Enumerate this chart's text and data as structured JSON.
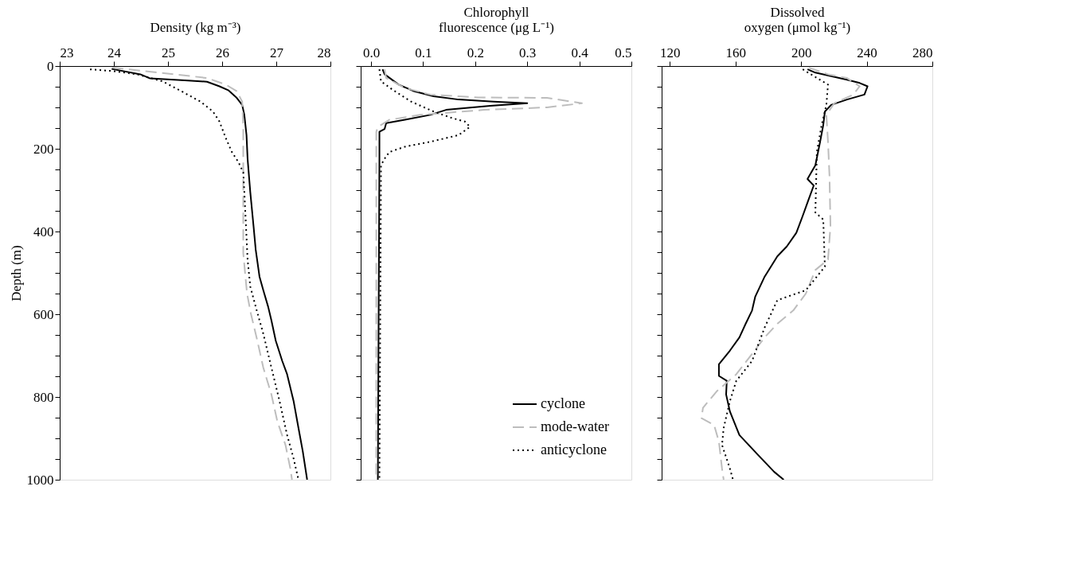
{
  "chart_data": [
    {
      "type": "line",
      "xlabel": "Density (kg m⁻³)",
      "ylabel": "Depth (m)",
      "xlim": [
        23,
        28
      ],
      "xticks": [
        23,
        24,
        25,
        26,
        27,
        28
      ],
      "ylim": [
        1000,
        0
      ],
      "yticks": [
        0,
        {
          "value": 50,
          "label": null
        },
        {
          "value": 100,
          "label": null
        },
        {
          "value": 150,
          "label": null
        },
        200,
        {
          "value": 250,
          "label": null
        },
        {
          "value": 300,
          "label": null
        },
        {
          "value": 350,
          "label": null
        },
        400,
        {
          "value": 450,
          "label": null
        },
        {
          "value": 500,
          "label": null
        },
        {
          "value": 550,
          "label": null
        },
        600,
        {
          "value": 650,
          "label": null
        },
        {
          "value": 700,
          "label": null
        },
        {
          "value": 750,
          "label": null
        },
        800,
        {
          "value": 850,
          "label": null
        },
        {
          "value": 900,
          "label": null
        },
        {
          "value": 950,
          "label": null
        },
        1000
      ],
      "series": [
        {
          "color": "#000000",
          "line_style": "solid",
          "x": [
            23.96,
            24.49,
            24.67,
            24.99,
            25.37,
            25.72,
            25.95,
            26.12,
            26.27,
            26.37,
            26.41,
            26.45,
            26.47,
            26.52,
            26.58,
            26.62,
            26.69,
            26.76,
            26.85,
            26.91,
            26.99,
            27.11,
            27.2,
            27.32,
            27.41,
            27.49,
            27.57
          ],
          "values": [
            7,
            20,
            30,
            32,
            35,
            38,
            49,
            59,
            77,
            94,
            118,
            167,
            224,
            305,
            387,
            444,
            509,
            542,
            582,
            615,
            664,
            713,
            745,
            810,
            875,
            932,
            1000
          ]
        },
        {
          "color": "#bdbdbd",
          "line_style": "dashed",
          "x": [
            23.97,
            24.55,
            25.13,
            25.72,
            26.07,
            26.27,
            26.37,
            26.39,
            26.39,
            26.39,
            26.39,
            26.43,
            26.46,
            26.53,
            26.65,
            26.76,
            26.91,
            27.02,
            27.17,
            27.26,
            27.29
          ],
          "values": [
            4,
            12,
            20,
            29,
            45,
            61,
            86,
            143,
            224,
            305,
            452,
            509,
            550,
            598,
            664,
            729,
            794,
            859,
            916,
            973,
            1000
          ]
        },
        {
          "color": "#000000",
          "line_style": "dotted",
          "x": [
            23.56,
            23.97,
            24.43,
            24.9,
            25.25,
            25.6,
            25.83,
            25.95,
            26.07,
            26.18,
            26.3,
            26.39,
            26.41,
            26.44,
            26.47,
            26.52,
            26.62,
            26.76,
            26.91,
            27.06,
            27.2,
            27.32,
            27.41
          ],
          "values": [
            8,
            12,
            20,
            37,
            61,
            86,
            110,
            134,
            175,
            208,
            232,
            257,
            305,
            387,
            468,
            533,
            582,
            647,
            729,
            810,
            892,
            949,
            1000
          ]
        }
      ]
    },
    {
      "type": "line",
      "xlabel": "Chlorophyll\nfluorescence (μg L⁻¹)",
      "xlim": [
        -0.02,
        0.5
      ],
      "xticks": [
        {
          "value": 0,
          "label": "0.0"
        },
        0.1,
        0.2,
        0.3,
        0.4,
        0.5
      ],
      "ylim": [
        1000,
        0
      ],
      "tick_labels": "x",
      "legend": "bottom right",
      "yticks": [
        0,
        {
          "value": 50,
          "label": null
        },
        {
          "value": 100,
          "label": null
        },
        {
          "value": 150,
          "label": null
        },
        200,
        {
          "value": 250,
          "label": null
        },
        {
          "value": 300,
          "label": null
        },
        {
          "value": 350,
          "label": null
        },
        400,
        {
          "value": 450,
          "label": null
        },
        {
          "value": 500,
          "label": null
        },
        {
          "value": 550,
          "label": null
        },
        600,
        {
          "value": 650,
          "label": null
        },
        {
          "value": 700,
          "label": null
        },
        {
          "value": 750,
          "label": null
        },
        800,
        {
          "value": 850,
          "label": null
        },
        {
          "value": 900,
          "label": null
        },
        {
          "value": 950,
          "label": null
        },
        1000
      ],
      "series": [
        {
          "name": "cyclone",
          "color": "#000000",
          "line_style": "solid",
          "x": [
            0.022,
            0.026,
            0.053,
            0.083,
            0.12,
            0.168,
            0.235,
            0.3,
            0.229,
            0.144,
            0.114,
            0.065,
            0.029,
            0.026,
            0.016,
            0.016,
            0.013
          ],
          "values": [
            8,
            20,
            45,
            61,
            73,
            81,
            86,
            90,
            96,
            106,
            118,
            130,
            138,
            152,
            159,
            224,
            1000
          ]
        },
        {
          "name": "mode-water",
          "color": "#bdbdbd",
          "line_style": "dashed",
          "x": [
            0.026,
            0.029,
            0.065,
            0.114,
            0.205,
            0.338,
            0.405,
            0.338,
            0.217,
            0.095,
            0.035,
            0.013,
            0.01,
            0.01
          ],
          "values": [
            8,
            29,
            53,
            69,
            76,
            77,
            90,
            100,
            106,
            118,
            130,
            147,
            159,
            1000
          ]
        },
        {
          "name": "anticyclone",
          "color": "#000000",
          "line_style": "dotted",
          "x": [
            0.016,
            0.019,
            0.041,
            0.077,
            0.12,
            0.156,
            0.18,
            0.19,
            0.168,
            0.114,
            0.065,
            0.035,
            0.026,
            0.019,
            0.016
          ],
          "values": [
            8,
            37,
            57,
            86,
            110,
            126,
            134,
            147,
            167,
            183,
            195,
            208,
            224,
            240,
            1000
          ]
        }
      ]
    },
    {
      "type": "line",
      "xlabel": "Dissolved\noxygen (μmol kg⁻¹)",
      "xlim": [
        115,
        280
      ],
      "xticks": [
        120,
        160,
        200,
        240,
        280
      ],
      "ylim": [
        1000,
        0
      ],
      "tick_labels": "x",
      "yticks": [
        0,
        {
          "value": 50,
          "label": null
        },
        {
          "value": 100,
          "label": null
        },
        {
          "value": 150,
          "label": null
        },
        200,
        {
          "value": 250,
          "label": null
        },
        {
          "value": 300,
          "label": null
        },
        {
          "value": 350,
          "label": null
        },
        400,
        {
          "value": 450,
          "label": null
        },
        {
          "value": 500,
          "label": null
        },
        {
          "value": 550,
          "label": null
        },
        600,
        {
          "value": 650,
          "label": null
        },
        {
          "value": 700,
          "label": null
        },
        {
          "value": 750,
          "label": null
        },
        800,
        {
          "value": 850,
          "label": null
        },
        {
          "value": 900,
          "label": null
        },
        {
          "value": 950,
          "label": null
        },
        1000
      ],
      "series": [
        {
          "color": "#000000",
          "line_style": "solid",
          "x": [
            203.9,
            208.7,
            228,
            235.7,
            240.5,
            238.6,
            228,
            218.3,
            214.5,
            213.5,
            211.6,
            208.7,
            203.9,
            207.7,
            203.9,
            201,
            197.1,
            191.3,
            185.5,
            177.8,
            172,
            170.1,
            166.2,
            162.4,
            156.6,
            149.9,
            149.9,
            154.7,
            154.3,
            156.6,
            162.4,
            174,
            183.6,
            189.4
          ],
          "values": [
            8,
            16,
            33,
            41,
            49,
            69,
            81,
            94,
            110,
            143,
            183,
            240,
            273,
            289,
            330,
            362,
            403,
            436,
            460,
            509,
            558,
            591,
            623,
            656,
            688,
            721,
            749,
            761,
            794,
            835,
            892,
            941,
            981,
            1000
          ]
        },
        {
          "color": "#bdbdbd",
          "line_style": "dashed",
          "x": [
            204.8,
            216.4,
            228,
            235.7,
            231.8,
            220.2,
            215.4,
            216.4,
            217.3,
            217.9,
            216.4,
            208.7,
            202.9,
            195.2,
            185.5,
            177.8,
            170.1,
            160.5,
            148.9,
            140.2,
            139.3,
            147,
            149.9,
            151.8,
            152.8
          ],
          "values": [
            4,
            20,
            29,
            49,
            69,
            90,
            118,
            183,
            265,
            387,
            468,
            493,
            550,
            591,
            623,
            656,
            696,
            745,
            785,
            826,
            851,
            868,
            908,
            973,
            1000
          ]
        },
        {
          "color": "#000000",
          "line_style": "dotted",
          "x": [
            201,
            216.4,
            215.4,
            212.5,
            209.6,
            208.7,
            213.5,
            214.5,
            202.9,
            185.5,
            177.8,
            170.1,
            160.5,
            156.6,
            152.8,
            151.8,
            156.6,
            158.5
          ],
          "values": [
            8,
            45,
            94,
            143,
            208,
            354,
            371,
            485,
            542,
            566,
            632,
            713,
            761,
            810,
            875,
            916,
            973,
            1000
          ]
        }
      ]
    }
  ]
}
